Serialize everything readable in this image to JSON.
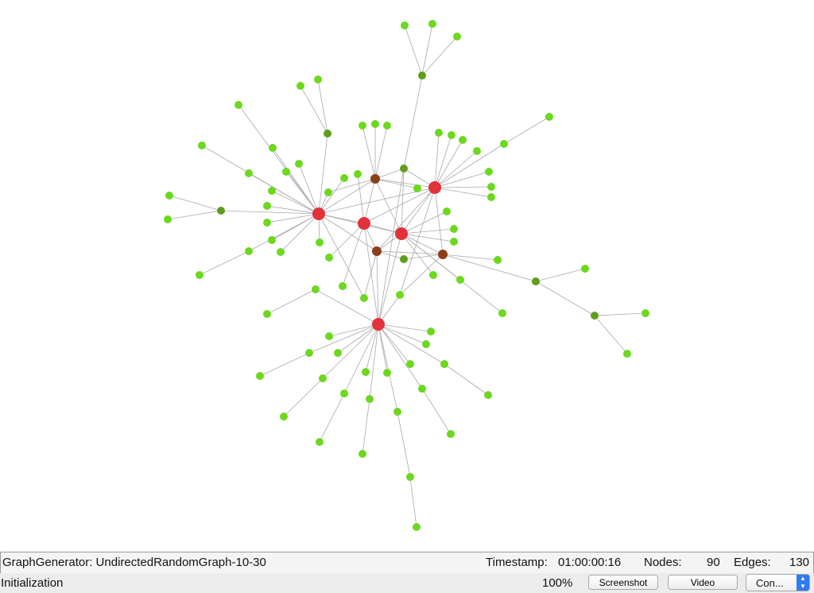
{
  "graph": {
    "colors": {
      "hub": "#e2313a",
      "bridge": "#8a3f1a",
      "mid": "#5f9e1c",
      "leaf": "#6cd81e",
      "edge": "#a9a9a9"
    },
    "node_count": 90,
    "edge_count": 130
  },
  "info_bar": {
    "generator": "GraphGenerator: UndirectedRandomGraph-10-30",
    "timestamp_label": "Timestamp:",
    "timestamp": "01:00:00:16",
    "nodes_label": "Nodes:",
    "nodes_value": "90",
    "edges_label": "Edges:",
    "edges_value": "130"
  },
  "status_bar": {
    "status": "Initialization",
    "zoom": "100%",
    "screenshot_label": "Screenshot",
    "video_label": "Video",
    "control_label": "Con..."
  }
}
